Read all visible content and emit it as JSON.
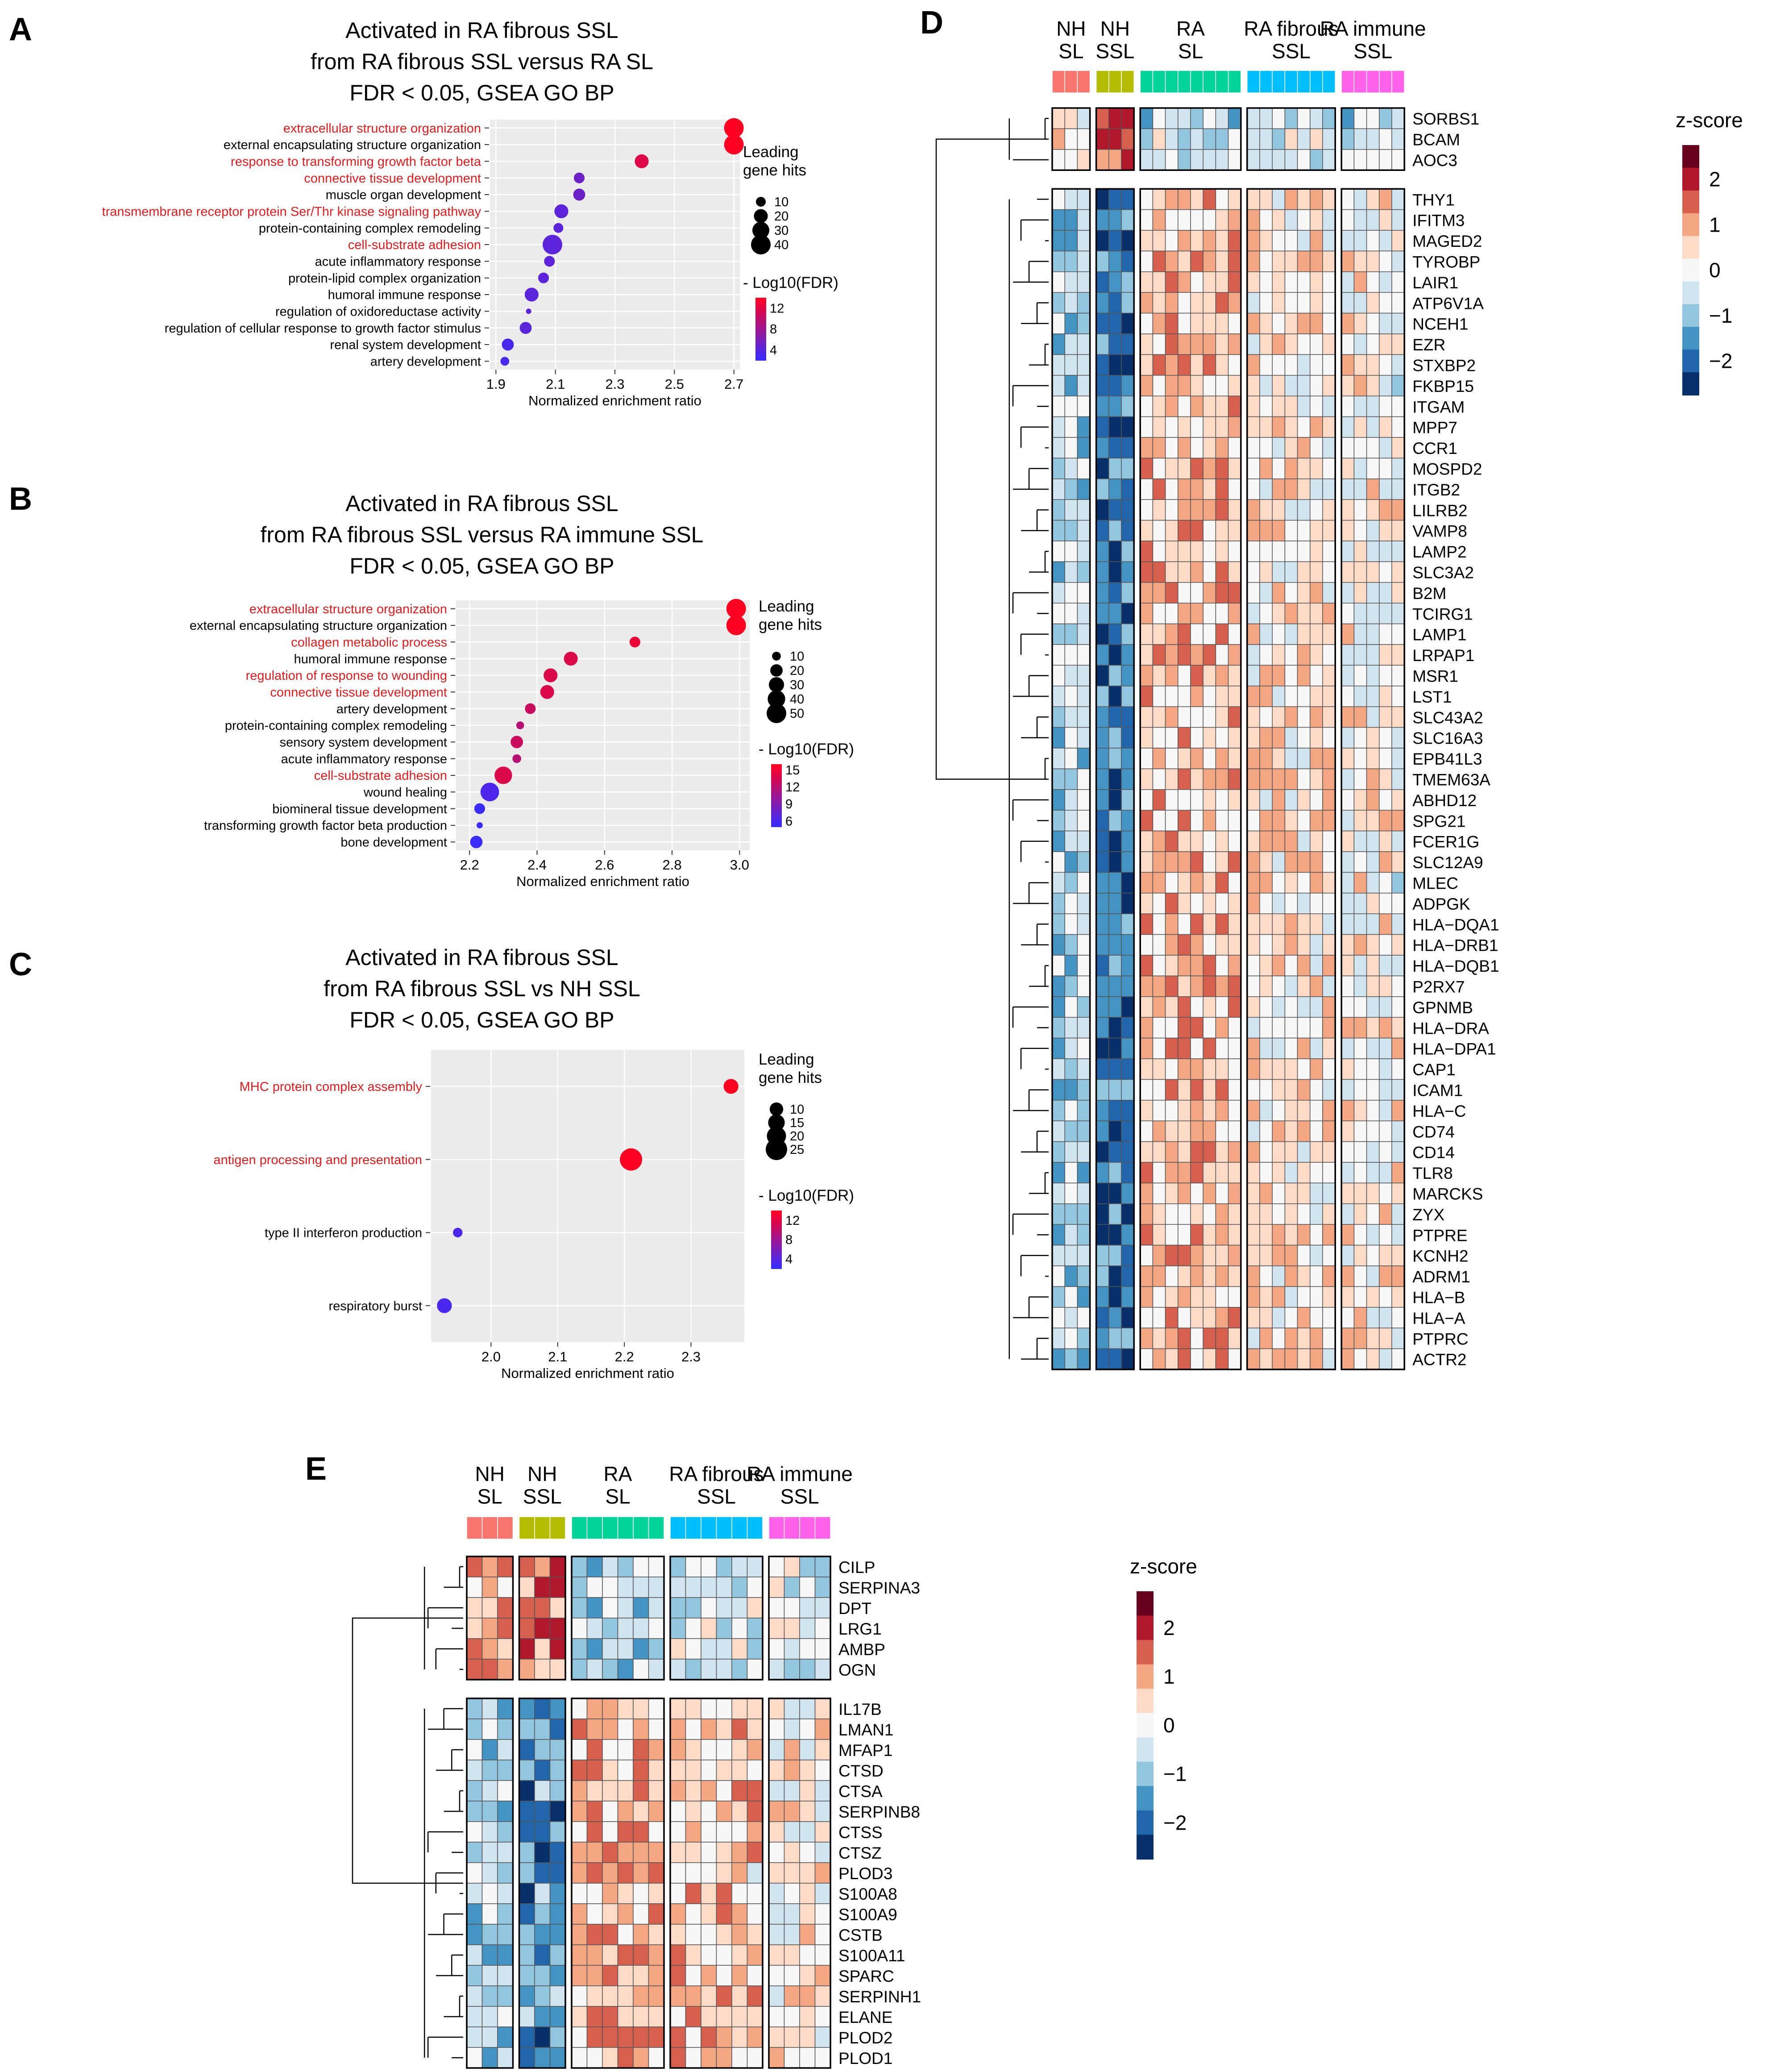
{
  "colors": {
    "panel_bg": "#EBEBEB",
    "highlight_text": "#E41A1C",
    "normal_text": "#000000",
    "fdr_low": "#3A2BFF",
    "fdr_high": "#FF0022",
    "zscore_scale": [
      "#08306B",
      "#2166AC",
      "#4393C3",
      "#92C5DE",
      "#D1E5F0",
      "#F7F7F7",
      "#FDDBC7",
      "#F4A582",
      "#D6604D",
      "#B2182B",
      "#67001F"
    ],
    "group_colors": [
      "#F8766D",
      "#B5BD00",
      "#00D498",
      "#00BFFF",
      "#FF61EA"
    ]
  },
  "heatmap_groups": [
    {
      "line1": "NH",
      "line2": "SL"
    },
    {
      "line1": "NH",
      "line2": "SSL"
    },
    {
      "line1": "RA",
      "line2": "SL"
    },
    {
      "line1": "RA fibrous",
      "line2": "SSL"
    },
    {
      "line1": "RA immune",
      "line2": "SSL"
    }
  ],
  "chart_data": [
    {
      "panel": "A",
      "type": "scatter",
      "title": [
        "Activated in RA fibrous SSL",
        "from RA fibrous SSL versus RA SL",
        "FDR < 0.05, GSEA GO BP"
      ],
      "xlabel": "Normalized enrichment ratio",
      "xlim": [
        1.88,
        2.72
      ],
      "xticks": [
        1.9,
        2.1,
        2.3,
        2.5,
        2.7
      ],
      "categories": [
        "extracellular structure organization",
        "external encapsulating structure organization",
        "response to transforming growth factor beta",
        "connective tissue development",
        "muscle organ development",
        "transmembrane receptor protein Ser/Thr kinase signaling pathway",
        "protein-containing complex remodeling",
        "cell-substrate adhesion",
        "acute inflammatory response",
        "protein-lipid complex organization",
        "humoral immune response",
        "regulation of oxidoreductase activity",
        "regulation of cellular response to growth factor stimulus",
        "renal system development",
        "artery development"
      ],
      "highlighted": [
        true,
        false,
        true,
        true,
        false,
        true,
        false,
        true,
        false,
        false,
        false,
        false,
        false,
        false,
        false
      ],
      "x": [
        2.7,
        2.7,
        2.39,
        2.18,
        2.18,
        2.12,
        2.11,
        2.09,
        2.08,
        2.06,
        2.02,
        2.01,
        2.0,
        1.94,
        1.93
      ],
      "gene_hits": [
        40,
        40,
        20,
        12,
        15,
        20,
        10,
        40,
        12,
        12,
        20,
        3,
        15,
        15,
        8
      ],
      "neg_log10_fdr": [
        14,
        14,
        12,
        5,
        5,
        4,
        4,
        4,
        4,
        4,
        4,
        4,
        4,
        3,
        3
      ],
      "size_legend_title": [
        "Leading",
        "gene hits"
      ],
      "size_legend": [
        10,
        20,
        30,
        40
      ],
      "color_legend_title": "- Log10(FDR)",
      "color_legend": [
        12,
        8,
        4
      ],
      "color_range": [
        2,
        14
      ]
    },
    {
      "panel": "B",
      "type": "scatter",
      "title": [
        "Activated in RA fibrous SSL",
        "from RA fibrous SSL versus RA immune SSL",
        "FDR < 0.05, GSEA GO BP"
      ],
      "xlabel": "Normalized enrichment ratio",
      "xlim": [
        2.16,
        3.03
      ],
      "xticks": [
        2.2,
        2.4,
        2.6,
        2.8,
        3.0
      ],
      "categories": [
        "extracellular structure organization",
        "external encapsulating structure organization",
        "collagen metabolic process",
        "humoral immune response",
        "regulation of response to wounding",
        "connective tissue development",
        "artery development",
        "protein-containing complex remodeling",
        "sensory system development",
        "acute inflammatory response",
        "cell-substrate adhesion",
        "wound healing",
        "biomineral tissue development",
        "transforming growth factor beta production",
        "bone development"
      ],
      "highlighted": [
        true,
        false,
        true,
        false,
        true,
        true,
        false,
        false,
        false,
        false,
        true,
        false,
        false,
        false,
        false
      ],
      "x": [
        2.99,
        2.99,
        2.69,
        2.5,
        2.44,
        2.43,
        2.38,
        2.35,
        2.34,
        2.34,
        2.3,
        2.26,
        2.23,
        2.23,
        2.22
      ],
      "gene_hits": [
        50,
        50,
        15,
        25,
        25,
        25,
        15,
        8,
        20,
        10,
        40,
        45,
        15,
        5,
        20
      ],
      "neg_log10_fdr": [
        16,
        16,
        15,
        14,
        14,
        14,
        13,
        12,
        13,
        12,
        14,
        6,
        5,
        5,
        5
      ],
      "size_legend_title": [
        "Leading",
        "gene hits"
      ],
      "size_legend": [
        10,
        20,
        30,
        40,
        50
      ],
      "color_legend_title": "- Log10(FDR)",
      "color_legend": [
        15,
        12,
        9,
        6
      ],
      "color_range": [
        5,
        16
      ]
    },
    {
      "panel": "C",
      "type": "scatter",
      "title": [
        "Activated in RA fibrous SSL",
        "from RA fibrous SSL vs NH SSL",
        "FDR < 0.05, GSEA GO BP"
      ],
      "xlabel": "Normalized enrichment ratio",
      "xlim": [
        1.91,
        2.38
      ],
      "xticks": [
        2.0,
        2.1,
        2.2,
        2.3
      ],
      "categories": [
        "MHC protein complex assembly",
        "antigen processing and presentation",
        "type II interferon production",
        "respiratory burst"
      ],
      "highlighted": [
        true,
        true,
        false,
        false
      ],
      "x": [
        2.36,
        2.21,
        1.95,
        1.93
      ],
      "gene_hits": [
        12,
        27,
        5,
        12
      ],
      "neg_log10_fdr": [
        14,
        14,
        3,
        3
      ],
      "size_legend_title": [
        "Leading",
        "gene hits"
      ],
      "size_legend": [
        10,
        15,
        20,
        25
      ],
      "color_legend_title": "- Log10(FDR)",
      "color_legend": [
        12,
        8,
        4
      ],
      "color_range": [
        2,
        14
      ]
    },
    {
      "panel": "D",
      "type": "heatmap",
      "legend_title": "z-score",
      "legend_ticks": [
        2,
        1,
        0,
        -1,
        -2
      ],
      "legend_labels": [
        "2",
        "1",
        "0",
        "−1",
        "−2"
      ],
      "group_sizes": [
        3,
        3,
        8,
        7,
        5
      ],
      "split_after_row": 2,
      "genes": [
        "SORBS1",
        "BCAM",
        "AOC3",
        "THY1",
        "IFITM3",
        "MAGED2",
        "TYROBP",
        "LAIR1",
        "ATP6V1A",
        "NCEH1",
        "EZR",
        "STXBP2",
        "FKBP15",
        "ITGAM",
        "MPP7",
        "CCR1",
        "MOSPD2",
        "ITGB2",
        "LILRB2",
        "VAMP8",
        "LAMP2",
        "SLC3A2",
        "B2M",
        "TCIRG1",
        "LAMP1",
        "LRPAP1",
        "MSR1",
        "LST1",
        "SLC43A2",
        "SLC16A3",
        "EPB41L3",
        "TMEM63A",
        "ABHD12",
        "SPG21",
        "FCER1G",
        "SLC12A9",
        "MLEC",
        "ADPGK",
        "HLA−DQA1",
        "HLA−DRB1",
        "HLA−DQB1",
        "P2RX7",
        "GPNMB",
        "HLA−DRA",
        "HLA−DPA1",
        "CAP1",
        "ICAM1",
        "HLA−C",
        "CD74",
        "CD14",
        "TLR8",
        "MARCKS",
        "ZYX",
        "PTPRE",
        "KCNH2",
        "ADRM1",
        "HLA−B",
        "HLA−A",
        "PTPRC",
        "ACTR2"
      ],
      "group_means": [
        [
          0.4,
          2.0,
          -0.6,
          -0.3,
          -0.6
        ],
        [
          -0.7,
          -1.8,
          0.7,
          0.4,
          0.1
        ]
      ]
    },
    {
      "panel": "E",
      "type": "heatmap",
      "legend_title": "z-score",
      "legend_ticks": [
        2,
        1,
        0,
        -1,
        -2
      ],
      "legend_labels": [
        "2",
        "1",
        "0",
        "−1",
        "−2"
      ],
      "group_sizes": [
        3,
        3,
        6,
        6,
        4
      ],
      "split_after_row": 5,
      "genes": [
        "CILP",
        "SERPINA3",
        "DPT",
        "LRG1",
        "AMBP",
        "OGN",
        "IL17B",
        "LMAN1",
        "MFAP1",
        "CTSD",
        "CTSA",
        "SERPINB8",
        "CTSS",
        "CTSZ",
        "PLOD3",
        "S100A8",
        "S100A9",
        "CSTB",
        "S100A11",
        "SPARC",
        "SERPINH1",
        "ELANE",
        "PLOD2",
        "PLOD1"
      ],
      "group_means": [
        [
          0.9,
          1.5,
          -0.6,
          -0.4,
          -0.4
        ],
        [
          -0.8,
          -1.6,
          0.8,
          0.6,
          0.2
        ]
      ]
    }
  ]
}
